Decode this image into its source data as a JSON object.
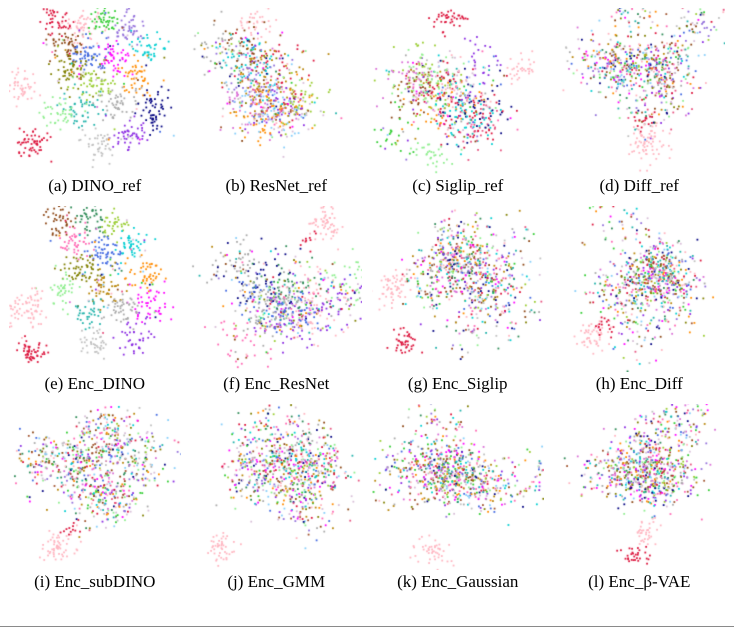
{
  "figure": {
    "description": "4x3 grid of t-SNE scatter embeddings comparing reference encoders and learned encoders",
    "background": "#ffffff"
  },
  "chart_data": {
    "type": "scatter",
    "layout": "grid-4x3",
    "grid_on": false,
    "axes_visible": false,
    "palette": [
      "#dc143c",
      "#ff69b4",
      "#ffb6c1",
      "#e75480",
      "#2e8b57",
      "#32cd32",
      "#90ee90",
      "#9acd32",
      "#808000",
      "#00ced1",
      "#20b2aa",
      "#87cefa",
      "#4169e1",
      "#000080",
      "#9370db",
      "#8a2be2",
      "#da70d6",
      "#ff00ff",
      "#ff8c00",
      "#a0522d",
      "#8b4513",
      "#a9a9a9",
      "#c0c0c0",
      "#b8860b",
      "#d8bfd8"
    ],
    "panels": [
      {
        "id": "a",
        "caption": "(a) DINO_ref",
        "seed": 11,
        "structure": "well-separated colored clusters with detached pink and crimson satellites",
        "elements": [
          {
            "mode": "cluster",
            "x": 0.28,
            "y": 0.07,
            "rx": 0.045,
            "ry": 0.045,
            "n": 45,
            "color": "#dc143c"
          },
          {
            "mode": "cluster",
            "x": 0.43,
            "y": 0.12,
            "rx": 0.055,
            "ry": 0.055,
            "n": 55,
            "color": "#ffb6c1"
          },
          {
            "mode": "cluster",
            "x": 0.56,
            "y": 0.06,
            "rx": 0.045,
            "ry": 0.045,
            "n": 45,
            "color": "#32cd32"
          },
          {
            "mode": "cluster",
            "x": 0.69,
            "y": 0.1,
            "rx": 0.05,
            "ry": 0.055,
            "n": 45,
            "color": "#9370db"
          },
          {
            "mode": "cluster",
            "x": 0.8,
            "y": 0.22,
            "rx": 0.05,
            "ry": 0.05,
            "n": 40,
            "color": "#00ced1"
          },
          {
            "mode": "cluster",
            "x": 0.33,
            "y": 0.22,
            "rx": 0.055,
            "ry": 0.05,
            "n": 50,
            "color": "#8b4513"
          },
          {
            "mode": "cluster",
            "x": 0.47,
            "y": 0.28,
            "rx": 0.055,
            "ry": 0.055,
            "n": 55,
            "color": "#4169e1"
          },
          {
            "mode": "cluster",
            "x": 0.6,
            "y": 0.3,
            "rx": 0.05,
            "ry": 0.05,
            "n": 45,
            "color": "#ff00ff"
          },
          {
            "mode": "cluster",
            "x": 0.36,
            "y": 0.38,
            "rx": 0.065,
            "ry": 0.055,
            "n": 60,
            "color": "#808000"
          },
          {
            "mode": "cluster",
            "x": 0.73,
            "y": 0.42,
            "rx": 0.05,
            "ry": 0.055,
            "n": 45,
            "color": "#ff8c00"
          },
          {
            "mode": "cluster",
            "x": 0.52,
            "y": 0.46,
            "rx": 0.055,
            "ry": 0.05,
            "n": 45,
            "color": "#9acd32"
          },
          {
            "mode": "cluster",
            "x": 0.63,
            "y": 0.56,
            "rx": 0.055,
            "ry": 0.055,
            "n": 50,
            "color": "#a9a9a9"
          },
          {
            "mode": "cluster",
            "x": 0.84,
            "y": 0.6,
            "rx": 0.045,
            "ry": 0.065,
            "n": 55,
            "color": "#000080"
          },
          {
            "mode": "cluster",
            "x": 0.42,
            "y": 0.6,
            "rx": 0.055,
            "ry": 0.05,
            "n": 45,
            "color": "#20b2aa"
          },
          {
            "mode": "cluster",
            "x": 0.7,
            "y": 0.76,
            "rx": 0.05,
            "ry": 0.055,
            "n": 45,
            "color": "#8a2be2"
          },
          {
            "mode": "cluster",
            "x": 0.52,
            "y": 0.82,
            "rx": 0.055,
            "ry": 0.05,
            "n": 45,
            "color": "#c0c0c0"
          },
          {
            "mode": "cluster",
            "x": 0.3,
            "y": 0.62,
            "rx": 0.05,
            "ry": 0.05,
            "n": 40,
            "color": "#90ee90"
          },
          {
            "mode": "cluster",
            "x": 0.07,
            "y": 0.47,
            "rx": 0.04,
            "ry": 0.05,
            "n": 45,
            "color": "#ffb6c1"
          },
          {
            "mode": "cluster",
            "x": 0.13,
            "y": 0.81,
            "rx": 0.04,
            "ry": 0.045,
            "n": 55,
            "color": "#dc143c"
          },
          {
            "mode": "mixed",
            "x": 0.5,
            "y": 0.42,
            "rx": 0.3,
            "ry": 0.3,
            "n": 50
          }
        ]
      },
      {
        "id": "b",
        "caption": "(b) ResNet_ref",
        "seed": 22,
        "structure": "single large blob with locally clustered colors",
        "elements": [
          {
            "mode": "cluster",
            "x": 0.38,
            "y": 0.08,
            "rx": 0.05,
            "ry": 0.04,
            "n": 35,
            "color": "#ffb6c1"
          },
          {
            "mode": "semi",
            "x": 0.5,
            "y": 0.52,
            "rx": 0.3,
            "ry": 0.28,
            "n": 750,
            "k": 16
          }
        ]
      },
      {
        "id": "c",
        "caption": "(c) Siglip_ref",
        "seed": 33,
        "structure": "large blob with colored patches, red satellite on top",
        "elements": [
          {
            "mode": "cluster",
            "x": 0.45,
            "y": 0.06,
            "rx": 0.045,
            "ry": 0.04,
            "n": 40,
            "color": "#dc143c"
          },
          {
            "mode": "semi",
            "x": 0.5,
            "y": 0.52,
            "rx": 0.3,
            "ry": 0.29,
            "n": 700,
            "k": 16
          },
          {
            "mode": "cluster",
            "x": 0.85,
            "y": 0.35,
            "rx": 0.04,
            "ry": 0.04,
            "n": 30,
            "color": "#ffb6c1"
          },
          {
            "mode": "cluster",
            "x": 0.33,
            "y": 0.88,
            "rx": 0.045,
            "ry": 0.04,
            "n": 30,
            "color": "#90ee90"
          }
        ]
      },
      {
        "id": "d",
        "caption": "(d) Diff_ref",
        "seed": 44,
        "structure": "intermixed blob with detached pink cluster below",
        "elements": [
          {
            "mode": "mixed",
            "x": 0.52,
            "y": 0.36,
            "rx": 0.3,
            "ry": 0.25,
            "n": 700
          },
          {
            "mode": "cluster",
            "x": 0.55,
            "y": 0.8,
            "rx": 0.055,
            "ry": 0.06,
            "n": 70,
            "color": "#ffb6c1"
          },
          {
            "mode": "cluster",
            "x": 0.52,
            "y": 0.67,
            "rx": 0.035,
            "ry": 0.03,
            "n": 15,
            "color": "#dc143c"
          },
          {
            "mode": "cluster",
            "x": 0.88,
            "y": 0.12,
            "rx": 0.03,
            "ry": 0.03,
            "n": 8,
            "color": "#9370db"
          }
        ]
      },
      {
        "id": "e",
        "caption": "(e) Enc_DINO",
        "seed": 55,
        "structure": "well-separated colored clusters with pink and crimson satellites lower-left",
        "elements": [
          {
            "mode": "cluster",
            "x": 0.3,
            "y": 0.08,
            "rx": 0.05,
            "ry": 0.05,
            "n": 45,
            "color": "#8b4513"
          },
          {
            "mode": "cluster",
            "x": 0.48,
            "y": 0.06,
            "rx": 0.045,
            "ry": 0.04,
            "n": 40,
            "color": "#2e8b57"
          },
          {
            "mode": "cluster",
            "x": 0.6,
            "y": 0.12,
            "rx": 0.045,
            "ry": 0.045,
            "n": 35,
            "color": "#9acd32"
          },
          {
            "mode": "cluster",
            "x": 0.38,
            "y": 0.2,
            "rx": 0.05,
            "ry": 0.05,
            "n": 45,
            "color": "#ff69b4"
          },
          {
            "mode": "cluster",
            "x": 0.55,
            "y": 0.28,
            "rx": 0.055,
            "ry": 0.055,
            "n": 55,
            "color": "#4169e1"
          },
          {
            "mode": "cluster",
            "x": 0.7,
            "y": 0.22,
            "rx": 0.045,
            "ry": 0.045,
            "n": 40,
            "color": "#00ced1"
          },
          {
            "mode": "cluster",
            "x": 0.42,
            "y": 0.38,
            "rx": 0.06,
            "ry": 0.055,
            "n": 55,
            "color": "#808000"
          },
          {
            "mode": "cluster",
            "x": 0.78,
            "y": 0.4,
            "rx": 0.05,
            "ry": 0.05,
            "n": 45,
            "color": "#ff8c00"
          },
          {
            "mode": "cluster",
            "x": 0.3,
            "y": 0.5,
            "rx": 0.05,
            "ry": 0.05,
            "n": 40,
            "color": "#90ee90"
          },
          {
            "mode": "cluster",
            "x": 0.55,
            "y": 0.5,
            "rx": 0.05,
            "ry": 0.045,
            "n": 40,
            "color": "#b8860b"
          },
          {
            "mode": "cluster",
            "x": 0.82,
            "y": 0.58,
            "rx": 0.045,
            "ry": 0.055,
            "n": 45,
            "color": "#ff00ff"
          },
          {
            "mode": "cluster",
            "x": 0.65,
            "y": 0.62,
            "rx": 0.05,
            "ry": 0.05,
            "n": 45,
            "color": "#a9a9a9"
          },
          {
            "mode": "cluster",
            "x": 0.45,
            "y": 0.65,
            "rx": 0.05,
            "ry": 0.045,
            "n": 35,
            "color": "#20b2aa"
          },
          {
            "mode": "cluster",
            "x": 0.72,
            "y": 0.78,
            "rx": 0.045,
            "ry": 0.05,
            "n": 40,
            "color": "#8a2be2"
          },
          {
            "mode": "cluster",
            "x": 0.5,
            "y": 0.82,
            "rx": 0.05,
            "ry": 0.045,
            "n": 40,
            "color": "#c0c0c0"
          },
          {
            "mode": "cluster",
            "x": 0.1,
            "y": 0.62,
            "rx": 0.055,
            "ry": 0.065,
            "n": 70,
            "color": "#ffb6c1"
          },
          {
            "mode": "cluster",
            "x": 0.13,
            "y": 0.88,
            "rx": 0.04,
            "ry": 0.04,
            "n": 50,
            "color": "#dc143c"
          },
          {
            "mode": "mixed",
            "x": 0.5,
            "y": 0.45,
            "rx": 0.32,
            "ry": 0.3,
            "n": 50
          }
        ]
      },
      {
        "id": "f",
        "caption": "(f) Enc_ResNet",
        "seed": 66,
        "structure": "large semi-mixed blob with pink satellite top-right",
        "elements": [
          {
            "mode": "semi",
            "x": 0.48,
            "y": 0.54,
            "rx": 0.32,
            "ry": 0.27,
            "n": 750,
            "k": 14
          },
          {
            "mode": "cluster",
            "x": 0.78,
            "y": 0.1,
            "rx": 0.055,
            "ry": 0.055,
            "n": 60,
            "color": "#ffb6c1"
          },
          {
            "mode": "cluster",
            "x": 0.7,
            "y": 0.17,
            "rx": 0.03,
            "ry": 0.03,
            "n": 10,
            "color": "#dc143c"
          }
        ]
      },
      {
        "id": "g",
        "caption": "(g) Enc_Siglip",
        "seed": 77,
        "structure": "intermixed blob with pink satellite left and red satellite lower-left",
        "elements": [
          {
            "mode": "mixed",
            "x": 0.56,
            "y": 0.44,
            "rx": 0.29,
            "ry": 0.3,
            "n": 750
          },
          {
            "mode": "cluster",
            "x": 0.12,
            "y": 0.48,
            "rx": 0.05,
            "ry": 0.06,
            "n": 55,
            "color": "#ffb6c1"
          },
          {
            "mode": "cluster",
            "x": 0.2,
            "y": 0.82,
            "rx": 0.04,
            "ry": 0.04,
            "n": 40,
            "color": "#dc143c"
          }
        ]
      },
      {
        "id": "h",
        "caption": "(h) Enc_Diff",
        "seed": 88,
        "structure": "intermixed blob with pink/red satellite lower-left",
        "elements": [
          {
            "mode": "mixed",
            "x": 0.56,
            "y": 0.42,
            "rx": 0.3,
            "ry": 0.28,
            "n": 720
          },
          {
            "mode": "cluster",
            "x": 0.22,
            "y": 0.79,
            "rx": 0.05,
            "ry": 0.05,
            "n": 50,
            "color": "#ffb6c1"
          },
          {
            "mode": "cluster",
            "x": 0.28,
            "y": 0.7,
            "rx": 0.03,
            "ry": 0.03,
            "n": 15,
            "color": "#dc143c"
          }
        ]
      },
      {
        "id": "i",
        "caption": "(i) Enc_subDINO",
        "seed": 99,
        "structure": "large intermixed blob with pink satellite below-left",
        "elements": [
          {
            "mode": "mixed",
            "x": 0.5,
            "y": 0.4,
            "rx": 0.34,
            "ry": 0.27,
            "n": 800
          },
          {
            "mode": "cluster",
            "x": 0.28,
            "y": 0.85,
            "rx": 0.05,
            "ry": 0.045,
            "n": 55,
            "color": "#ffb6c1"
          },
          {
            "mode": "cluster",
            "x": 0.35,
            "y": 0.76,
            "rx": 0.03,
            "ry": 0.03,
            "n": 12,
            "color": "#dc143c"
          }
        ]
      },
      {
        "id": "j",
        "caption": "(j) Enc_GMM",
        "seed": 110,
        "structure": "intermixed blob with pink satellite lower-left",
        "elements": [
          {
            "mode": "mixed",
            "x": 0.52,
            "y": 0.44,
            "rx": 0.3,
            "ry": 0.3,
            "n": 780
          },
          {
            "mode": "cluster",
            "x": 0.18,
            "y": 0.86,
            "rx": 0.05,
            "ry": 0.04,
            "n": 45,
            "color": "#ffb6c1"
          }
        ]
      },
      {
        "id": "k",
        "caption": "(k) Enc_Gaussian",
        "seed": 121,
        "structure": "intermixed blob with pink satellite at bottom",
        "elements": [
          {
            "mode": "mixed",
            "x": 0.52,
            "y": 0.44,
            "rx": 0.32,
            "ry": 0.28,
            "n": 780
          },
          {
            "mode": "cluster",
            "x": 0.35,
            "y": 0.88,
            "rx": 0.05,
            "ry": 0.04,
            "n": 45,
            "color": "#ffb6c1"
          }
        ]
      },
      {
        "id": "l",
        "caption": "(l) Enc_β-VAE",
        "seed": 132,
        "structure": "intermixed blob with red and pink satellites at bottom",
        "elements": [
          {
            "mode": "mixed",
            "x": 0.52,
            "y": 0.38,
            "rx": 0.3,
            "ry": 0.26,
            "n": 750
          },
          {
            "mode": "cluster",
            "x": 0.53,
            "y": 0.77,
            "rx": 0.04,
            "ry": 0.04,
            "n": 35,
            "color": "#ffb6c1"
          },
          {
            "mode": "cluster",
            "x": 0.47,
            "y": 0.9,
            "rx": 0.04,
            "ry": 0.03,
            "n": 30,
            "color": "#dc143c"
          }
        ]
      }
    ]
  }
}
